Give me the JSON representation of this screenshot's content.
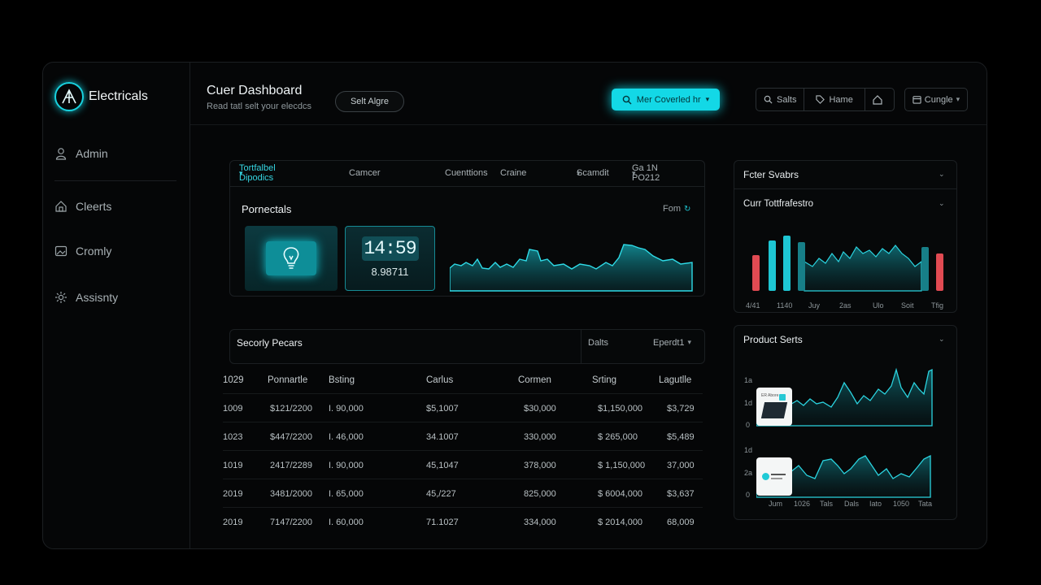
{
  "app": {
    "brand": "Electricals"
  },
  "sidebar": {
    "items": [
      {
        "label": "Admin",
        "icon": "user-icon"
      },
      {
        "label": "Cleerts",
        "icon": "home-icon"
      },
      {
        "label": "Cromly",
        "icon": "image-icon"
      },
      {
        "label": "Assisnty",
        "icon": "gear-icon"
      }
    ]
  },
  "header": {
    "title": "Cuer Dashboard",
    "subtitle": "Read tatl selt your elecdcs",
    "pill_button": "Selt Algre",
    "primary_button": "Mer Coverled hr",
    "toolbar": [
      "Salts",
      "Hame"
    ],
    "language": "Cungle"
  },
  "tabs": {
    "active": "Tortfalbel Dipodics",
    "items": [
      "Camcer",
      "Cuenttions",
      "Craine",
      "Scamdit",
      "Ga 1N PO212"
    ]
  },
  "widget": {
    "title": "Pornectals",
    "link": "Fom",
    "clock": "14:59",
    "value": "8.98711"
  },
  "table": {
    "title": "Secorly Pecars",
    "filter_a": "Dalts",
    "filter_b": "Eperdt1",
    "columns": [
      "1029",
      "Ponnartle",
      "Bsting",
      "Carlus",
      "Cormen",
      "Srting",
      "Lagutlle"
    ],
    "rows": [
      [
        "1009",
        "$121/2200",
        "I. 90,000",
        "$5,1007",
        "$30,000",
        "$1,150,000",
        "$3,729"
      ],
      [
        "1023",
        "$447/2200",
        "I. 46,000",
        "34.1007",
        "330,000",
        "$ 265,000",
        "$5,489"
      ],
      [
        "1019",
        "2417/2289",
        "I. 90,000",
        "45,1047",
        "378,000",
        "$ 1,150,000",
        "37,000"
      ],
      [
        "2019",
        "3481/2000",
        "I. 65,000",
        "45,/227",
        "825,000",
        "$ 6004,000",
        "$3,637"
      ],
      [
        "2019",
        "7147/2200",
        "I. 60,000",
        "71.1027",
        "334,000",
        "$ 2014,000",
        "68,009"
      ]
    ]
  },
  "right_top": {
    "title": "Fcter Svabrs",
    "subtitle": "Curr Tottfrafestro",
    "x_labels": [
      "4/41",
      "1140",
      "Juy",
      "2as",
      "Ulo",
      "Soit",
      "Tfig"
    ]
  },
  "right_bottom": {
    "title": "Product Serts",
    "y_top": [
      "1a",
      "1d",
      "0"
    ],
    "y_bot": [
      "1d",
      "2a",
      "0"
    ],
    "x_labels": [
      "Jum",
      "1026",
      "Tals",
      "Dals",
      "Iato",
      "1050",
      "Tata"
    ],
    "thumb_text": "ER Abore"
  },
  "colors": {
    "accent": "#13d8e6",
    "red": "#e04a52",
    "bg": "#050607"
  }
}
